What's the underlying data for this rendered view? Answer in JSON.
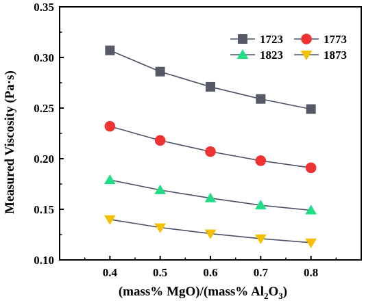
{
  "chart_data": {
    "type": "line",
    "xlabel": {
      "main": "(mass% MgO)/(mass% Al",
      "sub": "2",
      "mid": "O",
      "sub2": "3",
      "end": ")"
    },
    "ylabel": "Measured Viscosity (Pa·s)",
    "xlim": [
      0.3,
      0.9
    ],
    "ylim": [
      0.1,
      0.35
    ],
    "x_ticks": [
      0.4,
      0.5,
      0.6,
      0.7,
      0.8
    ],
    "x_tick_labels": [
      "0.4",
      "0.5",
      "0.6",
      "0.7",
      "0.8"
    ],
    "y_ticks": [
      0.1,
      0.15,
      0.2,
      0.25,
      0.3,
      0.35
    ],
    "y_tick_labels": [
      "0.10",
      "0.15",
      "0.20",
      "0.25",
      "0.30",
      "0.35"
    ],
    "grid": false,
    "legend_position": "top-right",
    "x": [
      0.4,
      0.5,
      0.6,
      0.7,
      0.8
    ],
    "series": [
      {
        "name": "1723",
        "marker": "square",
        "color": "#555a66",
        "values": [
          0.307,
          0.286,
          0.271,
          0.259,
          0.249
        ]
      },
      {
        "name": "1773",
        "marker": "circle",
        "color": "#ee3333",
        "values": [
          0.232,
          0.218,
          0.207,
          0.198,
          0.191
        ]
      },
      {
        "name": "1823",
        "marker": "triangle-up",
        "color": "#22dd88",
        "values": [
          0.179,
          0.169,
          0.161,
          0.154,
          0.149
        ]
      },
      {
        "name": "1873",
        "marker": "triangle-down",
        "color": "#f5c000",
        "values": [
          0.14,
          0.132,
          0.126,
          0.121,
          0.117
        ]
      }
    ],
    "line_color": "#4a5066"
  }
}
